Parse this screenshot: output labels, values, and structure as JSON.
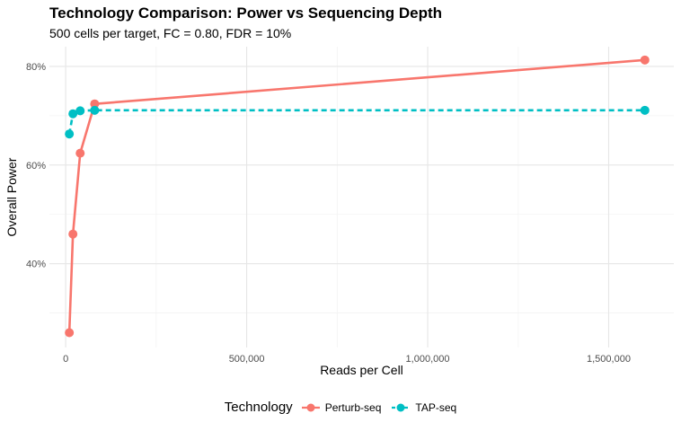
{
  "chart_data": {
    "type": "line",
    "title": "Technology Comparison: Power vs Sequencing Depth",
    "subtitle": "500 cells per target, FC = 0.80, FDR = 10%",
    "xlabel": "Reads per Cell",
    "ylabel": "Overall Power",
    "xlim": [
      -45000,
      1680000
    ],
    "ylim": [
      23,
      84
    ],
    "x_ticks": [
      0,
      500000,
      1000000,
      1500000
    ],
    "x_tick_labels": [
      "0",
      "500,000",
      "1,000,000",
      "1,500,000"
    ],
    "y_ticks": [
      40,
      60,
      80
    ],
    "y_tick_labels": [
      "40%",
      "60%",
      "80%"
    ],
    "grid": true,
    "legend_title": "Technology",
    "legend_position": "bottom",
    "series": [
      {
        "name": "Perturb-seq",
        "color": "#F8766D",
        "line_style": "solid",
        "points": [
          {
            "x": 10000,
            "y": 26.0
          },
          {
            "x": 20000,
            "y": 46.0
          },
          {
            "x": 40000,
            "y": 62.4
          },
          {
            "x": 80000,
            "y": 72.4
          },
          {
            "x": 1600000,
            "y": 81.3
          }
        ]
      },
      {
        "name": "TAP-seq",
        "color": "#00BFC4",
        "line_style": "dashed",
        "points": [
          {
            "x": 10000,
            "y": 66.3
          },
          {
            "x": 20000,
            "y": 70.4
          },
          {
            "x": 40000,
            "y": 71.0
          },
          {
            "x": 80000,
            "y": 71.1
          },
          {
            "x": 1600000,
            "y": 71.1
          }
        ]
      }
    ]
  }
}
